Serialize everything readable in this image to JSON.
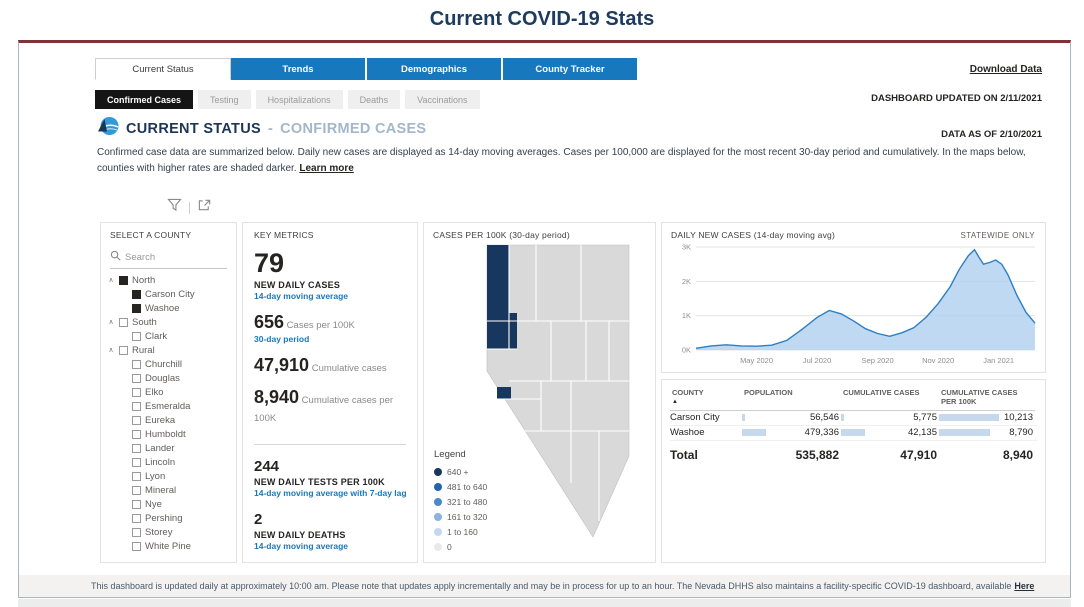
{
  "page_title": "Current COVID-19 Stats",
  "theme": {
    "tab_blue": "#1778bd",
    "navy": "#1c3557",
    "accent_blue": "#1778bd",
    "chart_line": "#2c7fc4",
    "chart_fill": "#b3d2ef",
    "table_bar": "#c6d9ec"
  },
  "tabs": [
    {
      "label": "Current Status",
      "active": true
    },
    {
      "label": "Trends",
      "active": false
    },
    {
      "label": "Demographics",
      "active": false
    },
    {
      "label": "County Tracker",
      "active": false
    }
  ],
  "download_link": "Download Data",
  "subtabs": [
    {
      "label": "Confirmed Cases",
      "active": true
    },
    {
      "label": "Testing",
      "active": false
    },
    {
      "label": "Hospitalizations",
      "active": false
    },
    {
      "label": "Deaths",
      "active": false
    },
    {
      "label": "Vaccinations",
      "active": false
    }
  ],
  "updated_text": "DASHBOARD UPDATED ON 2/11/2021",
  "header": {
    "section": "CURRENT STATUS",
    "separator": "-",
    "subsection": "CONFIRMED CASES",
    "data_as_of": "DATA AS OF 2/10/2021",
    "description": "Confirmed case data are summarized below. Daily new cases are displayed as 14-day moving averages. Cases per 100,000 are displayed for the most recent 30-day period and cumulatively. In the maps below, counties with higher rates are shaded darker.",
    "learn_more": "Learn more"
  },
  "county_panel": {
    "title": "SELECT A COUNTY",
    "search_placeholder": "Search",
    "chevron_icon": "∧",
    "tree": [
      {
        "label": "North",
        "checked": true,
        "children": [
          {
            "label": "Carson City",
            "checked": true
          },
          {
            "label": "Washoe",
            "checked": true
          }
        ]
      },
      {
        "label": "South",
        "checked": false,
        "children": [
          {
            "label": "Clark",
            "checked": false
          }
        ]
      },
      {
        "label": "Rural",
        "checked": false,
        "children": [
          {
            "label": "Churchill",
            "checked": false
          },
          {
            "label": "Douglas",
            "checked": false
          },
          {
            "label": "Elko",
            "checked": false
          },
          {
            "label": "Esmeralda",
            "checked": false
          },
          {
            "label": "Eureka",
            "checked": false
          },
          {
            "label": "Humboldt",
            "checked": false
          },
          {
            "label": "Lander",
            "checked": false
          },
          {
            "label": "Lincoln",
            "checked": false
          },
          {
            "label": "Lyon",
            "checked": false
          },
          {
            "label": "Mineral",
            "checked": false
          },
          {
            "label": "Nye",
            "checked": false
          },
          {
            "label": "Pershing",
            "checked": false
          },
          {
            "label": "Storey",
            "checked": false
          },
          {
            "label": "White Pine",
            "checked": false
          }
        ]
      }
    ]
  },
  "key_metrics": {
    "title": "KEY METRICS",
    "primary": {
      "value": "79",
      "label": "NEW DAILY CASES",
      "sub": "14-day moving average"
    },
    "inline_metrics": [
      {
        "value": "656",
        "label": "Cases per 100K",
        "sub": "30-day period"
      },
      {
        "value": "47,910",
        "label": "Cumulative cases",
        "sub": ""
      },
      {
        "value": "8,940",
        "label": "Cumulative cases per 100K",
        "sub": ""
      }
    ],
    "secondary_metrics": [
      {
        "value": "244",
        "label": "NEW DAILY TESTS PER 100K",
        "sub": "14-day moving average with 7-day lag"
      },
      {
        "value": "2",
        "label": "NEW DAILY DEATHS",
        "sub": "14-day moving average"
      }
    ]
  },
  "map_panel": {
    "title": "CASES PER 100K (30-day period)",
    "legend_title": "Legend",
    "legend": [
      {
        "label": "640 +",
        "color": "#17375e"
      },
      {
        "label": "481 to 640",
        "color": "#2066a8"
      },
      {
        "label": "321 to 480",
        "color": "#4a89c8"
      },
      {
        "label": "161 to 320",
        "color": "#8ab4dc"
      },
      {
        "label": "1 to 160",
        "color": "#c3d8ec"
      },
      {
        "label": "0",
        "color": "#e9e9e9"
      }
    ],
    "map_colors": {
      "default": "#d9d9d9",
      "selected_dark": "#17375e",
      "border": "#ffffff"
    }
  },
  "chart_data": {
    "type": "area",
    "title": "DAILY NEW CASES (14-day moving avg)",
    "note": "STATEWIDE ONLY",
    "ylabel_ticks": [
      "0K",
      "1K",
      "2K",
      "3K"
    ],
    "ylim": [
      0,
      3
    ],
    "xlim": [
      0,
      11.2
    ],
    "x_unit": "months since Mar 2020",
    "y_unit": "daily new cases (thousands, 14-day moving average)",
    "x_ticks": [
      {
        "x": 2,
        "label": "May 2020"
      },
      {
        "x": 4,
        "label": "Jul 2020"
      },
      {
        "x": 6,
        "label": "Sep 2020"
      },
      {
        "x": 8,
        "label": "Nov 2020"
      },
      {
        "x": 10,
        "label": "Jan 2021"
      }
    ],
    "points": [
      [
        0,
        0.05
      ],
      [
        0.5,
        0.12
      ],
      [
        1,
        0.15
      ],
      [
        1.5,
        0.12
      ],
      [
        2,
        0.11
      ],
      [
        2.5,
        0.14
      ],
      [
        3,
        0.28
      ],
      [
        3.5,
        0.6
      ],
      [
        4,
        0.95
      ],
      [
        4.4,
        1.15
      ],
      [
        4.8,
        1.05
      ],
      [
        5.2,
        0.85
      ],
      [
        5.6,
        0.62
      ],
      [
        6,
        0.48
      ],
      [
        6.4,
        0.4
      ],
      [
        6.8,
        0.5
      ],
      [
        7.2,
        0.65
      ],
      [
        7.6,
        0.95
      ],
      [
        8,
        1.35
      ],
      [
        8.4,
        1.85
      ],
      [
        8.7,
        2.35
      ],
      [
        9,
        2.75
      ],
      [
        9.2,
        2.92
      ],
      [
        9.35,
        2.7
      ],
      [
        9.5,
        2.5
      ],
      [
        9.7,
        2.55
      ],
      [
        9.9,
        2.62
      ],
      [
        10.1,
        2.5
      ],
      [
        10.3,
        2.2
      ],
      [
        10.6,
        1.6
      ],
      [
        10.9,
        1.1
      ],
      [
        11.2,
        0.78
      ]
    ]
  },
  "county_table": {
    "columns": [
      "COUNTY",
      "POPULATION",
      "CUMULATIVE CASES",
      "CUMULATIVE CASES PER 100K"
    ],
    "sort_icon": "▲",
    "rows": [
      {
        "county": "Carson City",
        "population": 56546,
        "population_text": "56,546",
        "cases": 5775,
        "cases_text": "5,775",
        "per100k": 10213,
        "per100k_text": "10,213"
      },
      {
        "county": "Washoe",
        "population": 479336,
        "population_text": "479,336",
        "cases": 42135,
        "cases_text": "42,135",
        "per100k": 8790,
        "per100k_text": "8,790"
      }
    ],
    "total": {
      "county": "Total",
      "population_text": "535,882",
      "cases_text": "47,910",
      "per100k_text": "8,940"
    }
  },
  "footer": {
    "text": "This dashboard is updated daily at approximately 10:00 am. Please note that updates apply incrementally and may be in process for up to an hour.  The Nevada DHHS also maintains a facility-specific COVID-19 dashboard, available",
    "link_label": "Here"
  }
}
